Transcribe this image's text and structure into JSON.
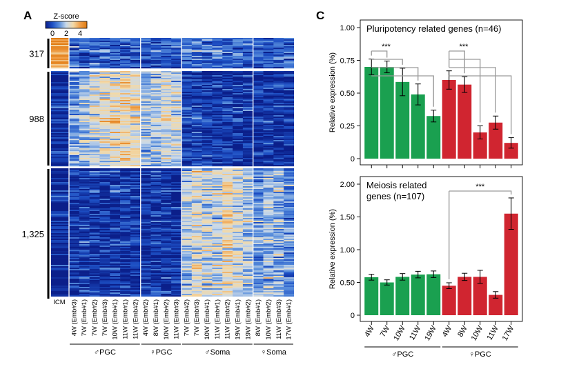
{
  "panelA": {
    "label": "A",
    "colorbar": {
      "title": "Z-score",
      "ticks": [
        "0",
        "2",
        "4"
      ],
      "tick_values": [
        0,
        2,
        4
      ],
      "range": [
        -1,
        5
      ],
      "stops": [
        "#0b1f8a",
        "#1d4fc4",
        "#5a8fdc",
        "#c9d9ea",
        "#f2d9a8",
        "#f0a04a",
        "#e07a10"
      ]
    },
    "clusters": [
      {
        "label": "317",
        "genes": 317
      },
      {
        "label": "988",
        "genes": 988
      },
      {
        "label": "1,325",
        "genes": 1325
      }
    ],
    "first_column_label": "ICM",
    "sample_columns": [
      "4W (Emb#3)",
      "7W (Emb#1)",
      "7W (Emb#2)",
      "7W (Emb#3)",
      "10W (Emb#1)",
      "11W (Emb#1)",
      "11W (Emb#2)",
      "4W (Emb#2)",
      "8W (Emb#1)",
      "10W (Emb#2)",
      "11W (Emb#3)",
      "7W (Emb#2)",
      "7W (Emb#3)",
      "10W (Emb#1)",
      "11W (Emb#1)",
      "11W (Emb#2)",
      "19W (Emb#1)",
      "19W (Emb#2)",
      "8W (Emb#1)",
      "10W (Emb#2)",
      "11W (Emb#3)",
      "17W (Emb#1)"
    ],
    "groups": [
      {
        "label": "♂PGC",
        "start": 0,
        "end": 6
      },
      {
        "label": "♀PGC",
        "start": 7,
        "end": 10
      },
      {
        "label": "♂Soma",
        "start": 11,
        "end": 17
      },
      {
        "label": "♀Soma",
        "start": 18,
        "end": 21
      }
    ]
  },
  "panelC": {
    "label": "C",
    "green": "#1aa050",
    "red": "#d02530",
    "categories": [
      "4W",
      "7W",
      "10W",
      "11W",
      "19W",
      "4W",
      "8W",
      "10W",
      "11W",
      "17W"
    ],
    "groups": [
      {
        "label": "♂PGC",
        "start": 0,
        "end": 4
      },
      {
        "label": "♀PGC",
        "start": 5,
        "end": 9
      }
    ]
  },
  "chart_data": [
    {
      "type": "heatmap",
      "title": "",
      "colorbar_title": "Z-score",
      "colorbar_ticks": [
        0,
        2,
        4
      ],
      "row_clusters": [
        {
          "label": "317",
          "genes": 317
        },
        {
          "label": "988",
          "genes": 988
        },
        {
          "label": "1,325",
          "genes": 1325
        }
      ],
      "column_groups": [
        {
          "name": "ICM",
          "columns": 1
        },
        {
          "name": "♂PGC",
          "columns": 7
        },
        {
          "name": "♀PGC",
          "columns": 4
        },
        {
          "name": "♂Soma",
          "columns": 7
        },
        {
          "name": "♀Soma",
          "columns": 4
        }
      ],
      "cluster_mean_zscore": [
        [
          4.0,
          0.3,
          0.3,
          0.3,
          0.3,
          0.3,
          0.3,
          0.3,
          0.2,
          0.2,
          0.2,
          0.2,
          0.5,
          0.5,
          0.5,
          0.5,
          0.5,
          0.5,
          0.5,
          0.4,
          0.4,
          0.4,
          0.4
        ],
        [
          -0.8,
          1.2,
          1.8,
          2.2,
          2.4,
          2.6,
          2.8,
          2.6,
          1.6,
          1.8,
          2.2,
          2.0,
          -0.4,
          -0.3,
          -0.5,
          -0.4,
          -0.4,
          -0.5,
          -0.5,
          -0.6,
          -0.6,
          -0.6,
          -0.6
        ],
        [
          -0.7,
          -0.5,
          -0.5,
          -0.5,
          -0.5,
          -0.5,
          -0.5,
          -0.5,
          -0.5,
          -0.5,
          -0.5,
          -0.6,
          1.8,
          2.4,
          2.2,
          2.0,
          2.8,
          2.2,
          1.8,
          1.2,
          1.6,
          1.4,
          1.0
        ]
      ]
    },
    {
      "type": "bar",
      "title": "Pluripotency related genes (n=46)",
      "xlabel": "",
      "ylabel": "Relative expression (%)",
      "categories": [
        "4W",
        "7W",
        "10W",
        "11W",
        "19W",
        "4W",
        "8W",
        "10W",
        "11W",
        "17W"
      ],
      "values": [
        0.7,
        0.7,
        0.585,
        0.49,
        0.325,
        0.6,
        0.565,
        0.2,
        0.275,
        0.12
      ],
      "errors": [
        0.06,
        0.045,
        0.105,
        0.08,
        0.045,
        0.07,
        0.06,
        0.05,
        0.05,
        0.04
      ],
      "colors": [
        "#1aa050",
        "#1aa050",
        "#1aa050",
        "#1aa050",
        "#1aa050",
        "#d02530",
        "#d02530",
        "#d02530",
        "#d02530",
        "#d02530"
      ],
      "ylim": [
        0,
        1.0
      ],
      "yticks": [
        "0",
        "0.25",
        "0.50",
        "0.75",
        "1.00"
      ],
      "ytick_values": [
        0,
        0.25,
        0.5,
        0.75,
        1.0
      ],
      "significance": [
        {
          "from": 0,
          "to": [
            1,
            2,
            3,
            4
          ],
          "label": "***"
        },
        {
          "from": 5,
          "to": [
            6,
            7,
            8,
            9
          ],
          "label": "***"
        }
      ]
    },
    {
      "type": "bar",
      "title": "Meiosis related genes (n=107)",
      "title_lines": [
        "Meiosis related",
        "genes (n=107)"
      ],
      "xlabel": "",
      "ylabel": "Relative expression (%)",
      "categories": [
        "4W",
        "7W",
        "10W",
        "11W",
        "19W",
        "4W",
        "8W",
        "10W",
        "11W",
        "17W"
      ],
      "values": [
        0.58,
        0.5,
        0.585,
        0.62,
        0.625,
        0.45,
        0.585,
        0.585,
        0.31,
        1.55
      ],
      "errors": [
        0.045,
        0.04,
        0.05,
        0.05,
        0.05,
        0.045,
        0.055,
        0.1,
        0.05,
        0.24
      ],
      "colors": [
        "#1aa050",
        "#1aa050",
        "#1aa050",
        "#1aa050",
        "#1aa050",
        "#d02530",
        "#d02530",
        "#d02530",
        "#d02530",
        "#d02530"
      ],
      "ylim": [
        0,
        2.0
      ],
      "yticks": [
        "0",
        "0.50",
        "1.00",
        "1.50",
        "2.00"
      ],
      "ytick_values": [
        0,
        0.5,
        1.0,
        1.5,
        2.0
      ],
      "significance": [
        {
          "from": 5,
          "to": [
            9
          ],
          "label": "***"
        }
      ]
    }
  ]
}
